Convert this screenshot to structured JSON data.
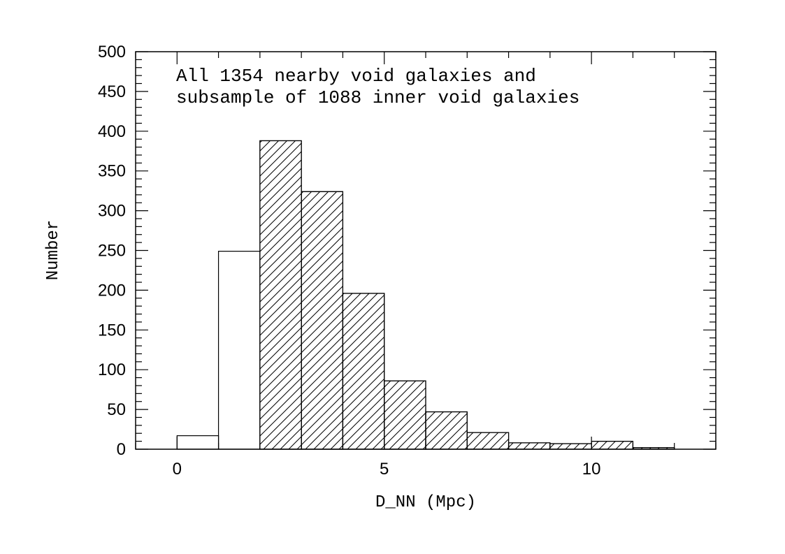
{
  "chart_data": {
    "type": "bar",
    "title": "",
    "xlabel": "D_NN (Mpc)",
    "ylabel": "Number",
    "xlim": [
      -1,
      13
    ],
    "ylim": [
      0,
      500
    ],
    "x_ticks": [
      "0",
      "5",
      "10"
    ],
    "y_ticks": [
      "0",
      "50",
      "100",
      "150",
      "200",
      "250",
      "300",
      "350",
      "400",
      "450",
      "500"
    ],
    "annotation_lines": [
      "All 1354 nearby void galaxies and",
      "subsample of 1088 inner void galaxies"
    ],
    "grid": false,
    "series": [
      {
        "style": "open",
        "bins": [
          {
            "x0": 0,
            "x1": 1,
            "value": 17
          },
          {
            "x0": 1,
            "x1": 2,
            "value": 249
          },
          {
            "x0": 2,
            "x1": 3,
            "value": 388
          },
          {
            "x0": 3,
            "x1": 4,
            "value": 324
          },
          {
            "x0": 4,
            "x1": 5,
            "value": 196
          },
          {
            "x0": 5,
            "x1": 6,
            "value": 86
          },
          {
            "x0": 6,
            "x1": 7,
            "value": 47
          },
          {
            "x0": 7,
            "x1": 8,
            "value": 21
          },
          {
            "x0": 8,
            "x1": 9,
            "value": 8
          },
          {
            "x0": 9,
            "x1": 10,
            "value": 7
          },
          {
            "x0": 10,
            "x1": 11,
            "value": 10
          },
          {
            "x0": 11,
            "x1": 12,
            "value": 2
          }
        ]
      },
      {
        "style": "hatched",
        "bins": [
          {
            "x0": 2,
            "x1": 3,
            "value": 388
          },
          {
            "x0": 3,
            "x1": 4,
            "value": 324
          },
          {
            "x0": 4,
            "x1": 5,
            "value": 196
          },
          {
            "x0": 5,
            "x1": 6,
            "value": 86
          },
          {
            "x0": 6,
            "x1": 7,
            "value": 47
          },
          {
            "x0": 7,
            "x1": 8,
            "value": 21
          },
          {
            "x0": 8,
            "x1": 9,
            "value": 8
          },
          {
            "x0": 9,
            "x1": 10,
            "value": 7
          },
          {
            "x0": 10,
            "x1": 11,
            "value": 10
          },
          {
            "x0": 11,
            "x1": 12,
            "value": 2
          }
        ]
      }
    ],
    "colors": {
      "line": "#000000",
      "background": "#ffffff"
    }
  }
}
